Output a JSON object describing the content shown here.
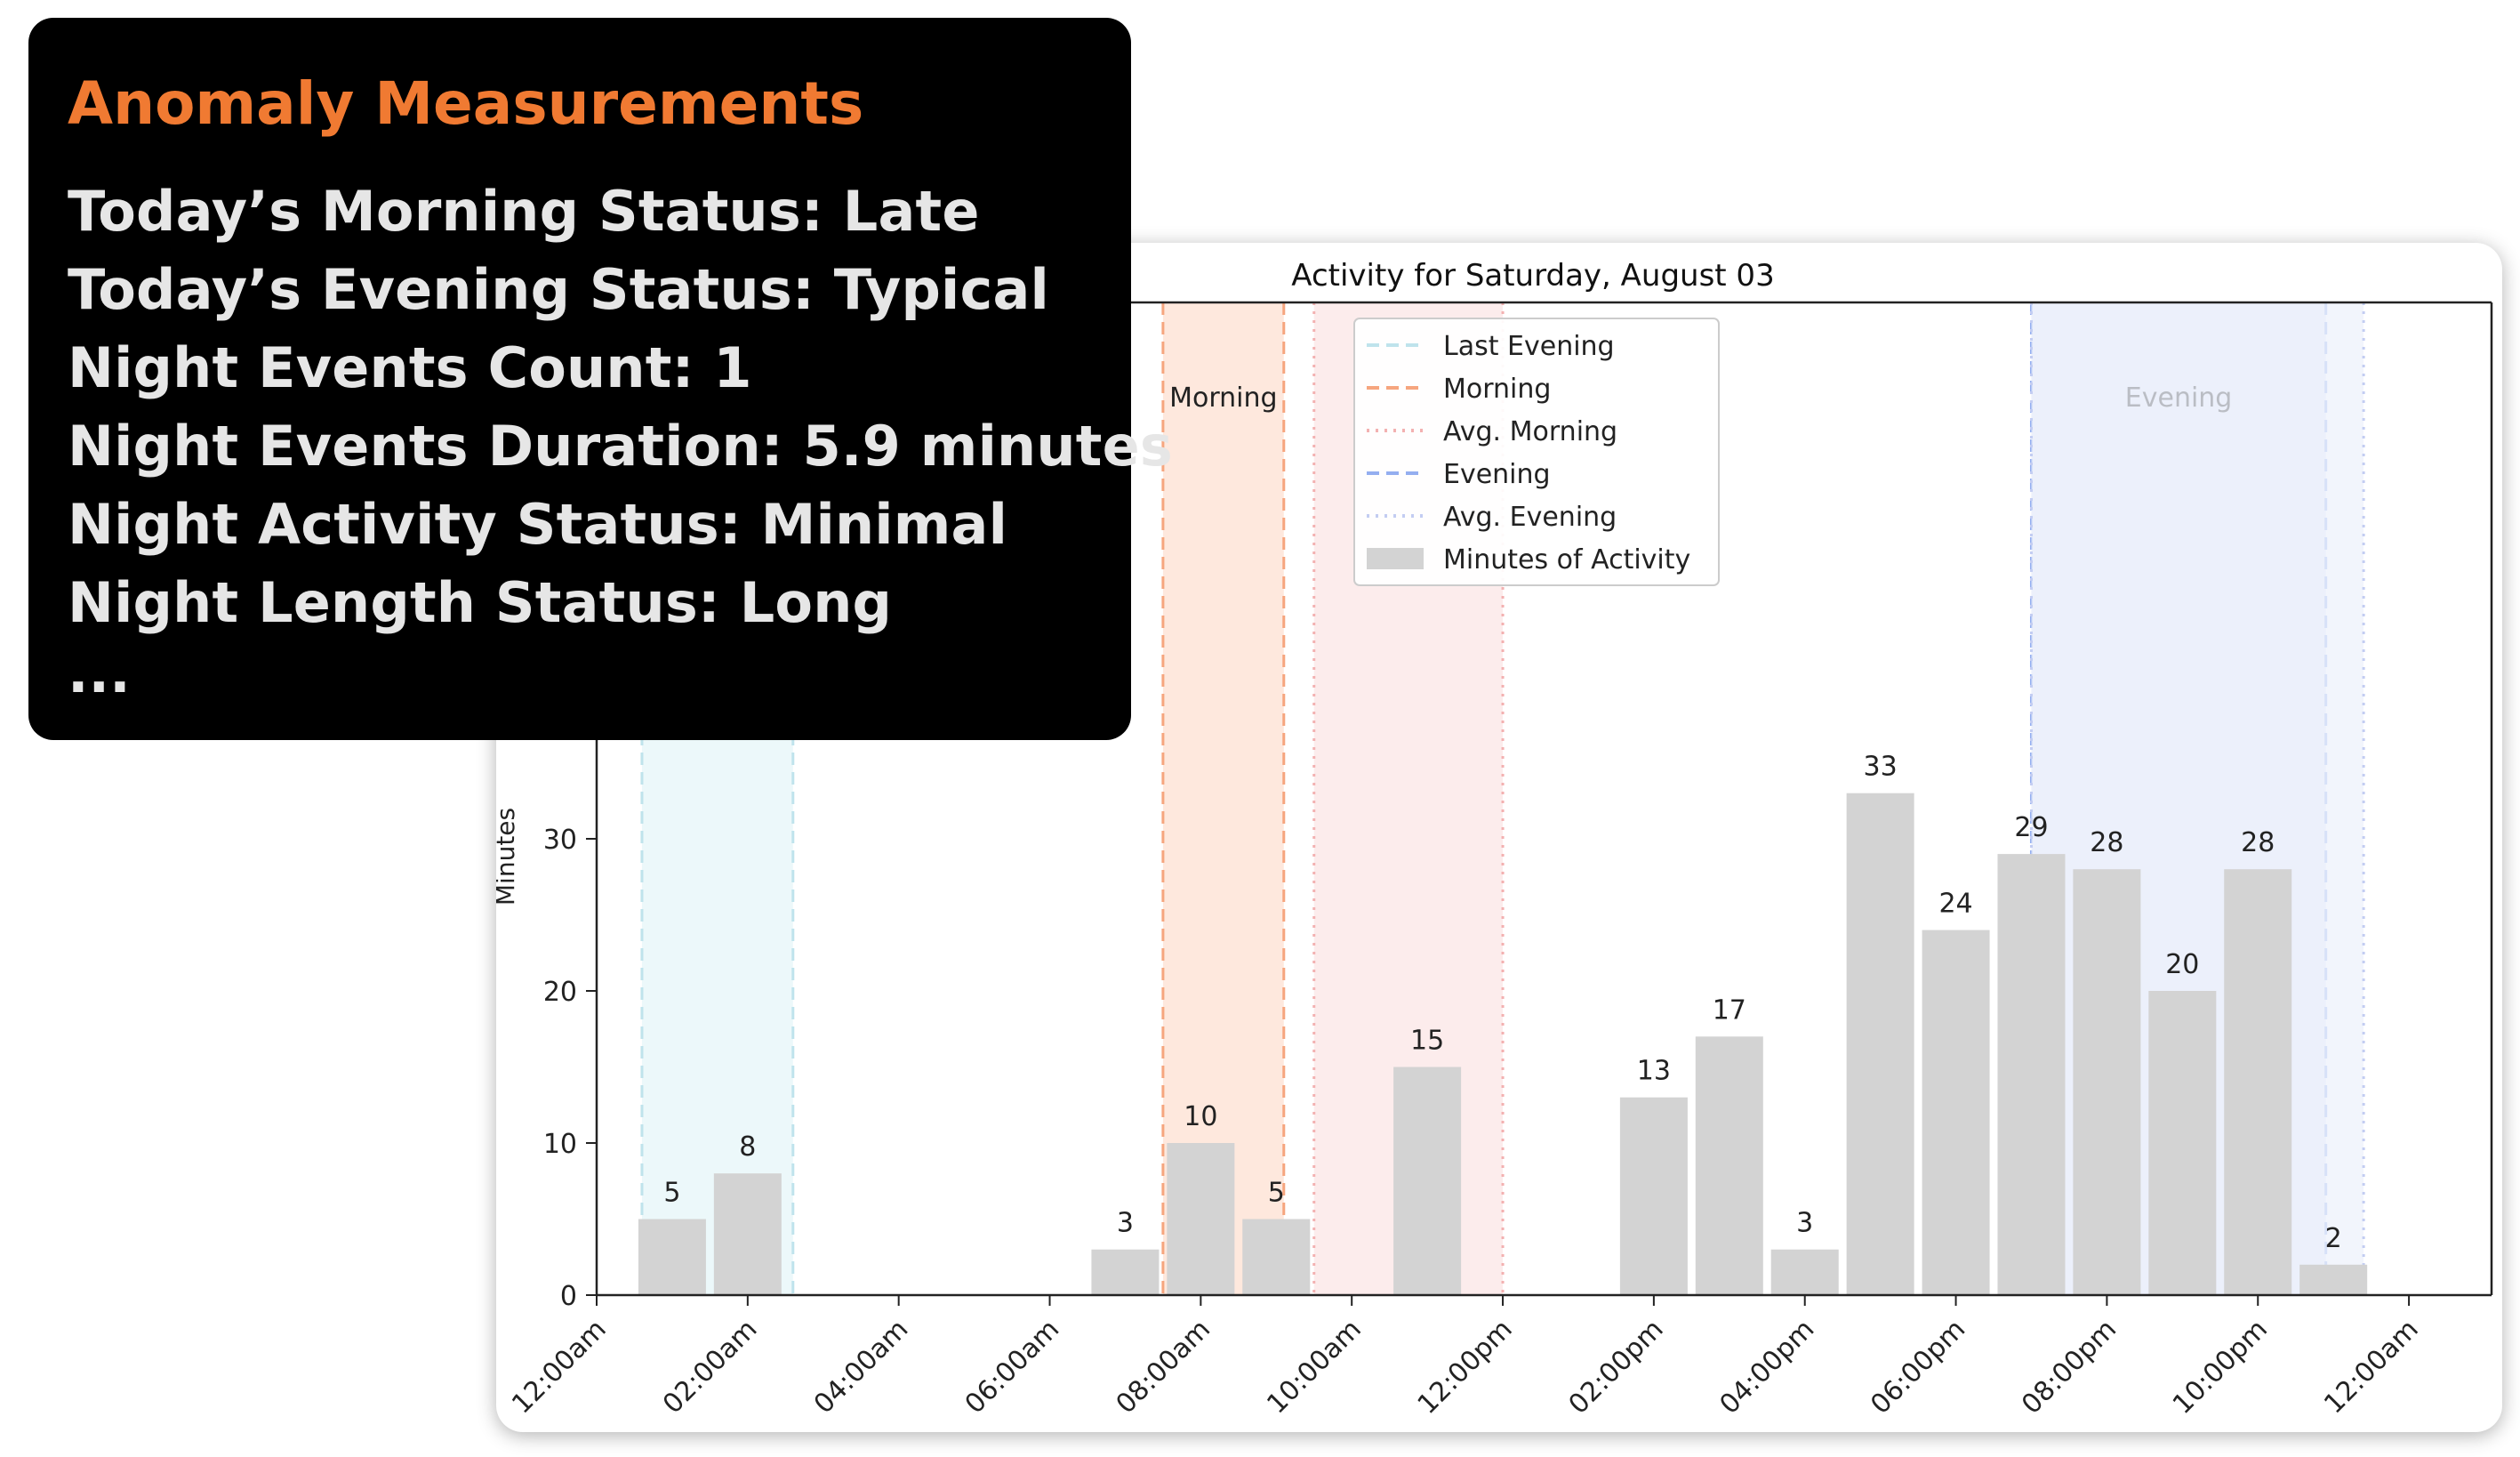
{
  "panel": {
    "title": "Anomaly Measurements",
    "lines": [
      "Today’s Morning Status: Late",
      "Today’s Evening Status: Typical",
      "Night Events Count: 1",
      "Night Events Duration: 5.9 minutes",
      "Night Activity Status: Minimal",
      "Night Length Status: Long"
    ],
    "ellipsis": "..."
  },
  "chart_data": {
    "type": "bar",
    "title": "Activity for Saturday, August 03",
    "ylabel": "Minutes",
    "xlabel": "",
    "x_unit": "hour of day",
    "bin_hours": 1,
    "xlim": [
      0,
      24
    ],
    "ylim": [
      0,
      40
    ],
    "yticks": [
      0,
      10,
      20,
      30
    ],
    "xticks": [
      {
        "x": 0,
        "label": "12:00am"
      },
      {
        "x": 2,
        "label": "02:00am"
      },
      {
        "x": 4,
        "label": "04:00am"
      },
      {
        "x": 6,
        "label": "06:00am"
      },
      {
        "x": 8,
        "label": "08:00am"
      },
      {
        "x": 10,
        "label": "10:00am"
      },
      {
        "x": 12,
        "label": "12:00pm"
      },
      {
        "x": 14,
        "label": "02:00pm"
      },
      {
        "x": 16,
        "label": "04:00pm"
      },
      {
        "x": 18,
        "label": "06:00pm"
      },
      {
        "x": 20,
        "label": "08:00pm"
      },
      {
        "x": 22,
        "label": "10:00pm"
      },
      {
        "x": 24,
        "label": "12:00am"
      }
    ],
    "bars": [
      {
        "hour": 1,
        "value": 5
      },
      {
        "hour": 2,
        "value": 8
      },
      {
        "hour": 7,
        "value": 3
      },
      {
        "hour": 8,
        "value": 10
      },
      {
        "hour": 9,
        "value": 5
      },
      {
        "hour": 11,
        "value": 15
      },
      {
        "hour": 14,
        "value": 13
      },
      {
        "hour": 15,
        "value": 17
      },
      {
        "hour": 16,
        "value": 3
      },
      {
        "hour": 17,
        "value": 33
      },
      {
        "hour": 18,
        "value": 24
      },
      {
        "hour": 19,
        "value": 29
      },
      {
        "hour": 20,
        "value": 28
      },
      {
        "hour": 21,
        "value": 20
      },
      {
        "hour": 22,
        "value": 28
      },
      {
        "hour": 23,
        "value": 2
      }
    ],
    "bar_color": "#d3d3d3",
    "regions": [
      {
        "start": 0.6,
        "end": 2.6,
        "color": "#e6f5f8",
        "line_color": "#bfe3ec",
        "style": "dashed",
        "label": ""
      },
      {
        "start": 7.5,
        "end": 9.1,
        "color": "#fde0d2",
        "line_color": "#f6a57e",
        "style": "dashed",
        "label": "Morning"
      },
      {
        "start": 9.5,
        "end": 12.0,
        "color": "#fbe6e6",
        "line_color": "#f3b1b1",
        "style": "dotted",
        "label": ""
      },
      {
        "start": 19.0,
        "end": 22.9,
        "color": "#dfe6fb",
        "line_color": "#94aef0",
        "style": "dashed",
        "label": "Evening"
      },
      {
        "start": 19.0,
        "end": 23.4,
        "color": "#eef1fb",
        "line_color": "#c3cdf2",
        "style": "dotted",
        "label": ""
      }
    ],
    "legend": {
      "position": "upper-center",
      "entries": [
        {
          "label": "Last Evening",
          "kind": "line",
          "color": "#bfe3ec",
          "style": "dashed"
        },
        {
          "label": "Morning",
          "kind": "line",
          "color": "#f6a57e",
          "style": "dashed"
        },
        {
          "label": "Avg. Morning",
          "kind": "line",
          "color": "#f3b1b1",
          "style": "dotted"
        },
        {
          "label": "Evening",
          "kind": "line",
          "color": "#94aef0",
          "style": "dashed"
        },
        {
          "label": "Avg. Evening",
          "kind": "line",
          "color": "#c3cdf2",
          "style": "dotted"
        },
        {
          "label": "Minutes of Activity",
          "kind": "patch",
          "color": "#d3d3d3"
        }
      ]
    }
  }
}
